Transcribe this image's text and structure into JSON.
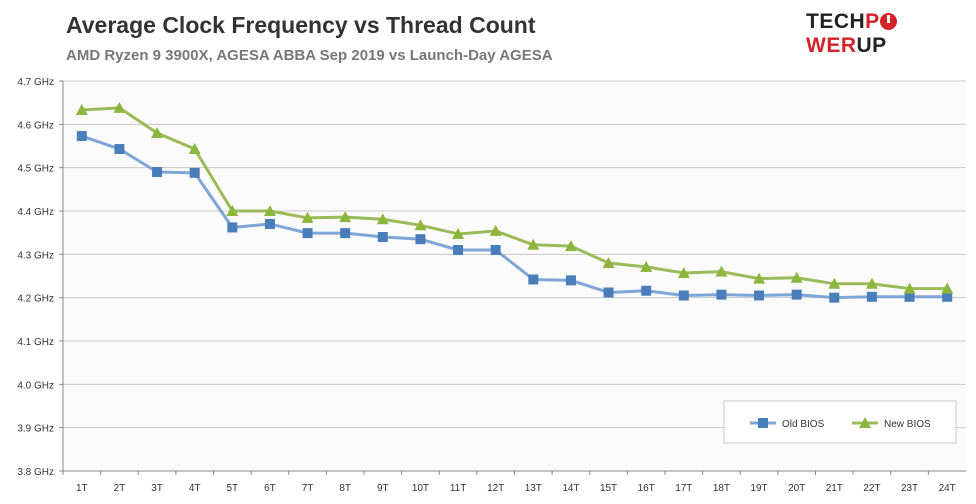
{
  "chart_data": {
    "type": "line",
    "title": "Average Clock Frequency vs Thread Count",
    "subtitle": "AMD Ryzen 9 3900X, AGESA ABBA Sep 2019 vs Launch-Day AGESA",
    "xlabel": "",
    "ylabel": "",
    "ylim": [
      3.8,
      4.7
    ],
    "yticks": [
      "3.8 GHz",
      "3.9 GHz",
      "4.0 GHz",
      "4.1 GHz",
      "4.2 GHz",
      "4.3 GHz",
      "4.4 GHz",
      "4.5 GHz",
      "4.6 GHz",
      "4.7 GHz"
    ],
    "ytick_values": [
      3.8,
      3.9,
      4.0,
      4.1,
      4.2,
      4.3,
      4.4,
      4.5,
      4.6,
      4.7
    ],
    "grid": true,
    "legend_position": "bottom-right",
    "categories": [
      "1T",
      "2T",
      "3T",
      "4T",
      "5T",
      "6T",
      "7T",
      "8T",
      "9T",
      "10T",
      "11T",
      "12T",
      "13T",
      "14T",
      "15T",
      "16T",
      "17T",
      "18T",
      "19T",
      "20T",
      "21T",
      "22T",
      "23T",
      "24T"
    ],
    "series": [
      {
        "name": "Old BIOS",
        "color": "#4a7ebb",
        "line_color": "#7ea6d6",
        "marker": "square",
        "values": [
          4.573,
          4.543,
          4.49,
          4.488,
          4.362,
          4.37,
          4.349,
          4.349,
          4.34,
          4.335,
          4.31,
          4.31,
          4.242,
          4.24,
          4.212,
          4.216,
          4.205,
          4.207,
          4.205,
          4.207,
          4.2,
          4.202,
          4.202,
          4.202
        ]
      },
      {
        "name": "New BIOS",
        "color": "#8db63c",
        "line_color": "#9bbb59",
        "marker": "triangle",
        "values": [
          4.633,
          4.638,
          4.58,
          4.543,
          4.4,
          4.4,
          4.384,
          4.386,
          4.381,
          4.367,
          4.347,
          4.354,
          4.322,
          4.319,
          4.28,
          4.271,
          4.257,
          4.26,
          4.244,
          4.246,
          4.232,
          4.232,
          4.221,
          4.221
        ]
      }
    ]
  },
  "logo": {
    "text": "TECHPOWERUP",
    "part1": "TECH",
    "part2": "P",
    "part3": "WER",
    "part4": "UP"
  }
}
